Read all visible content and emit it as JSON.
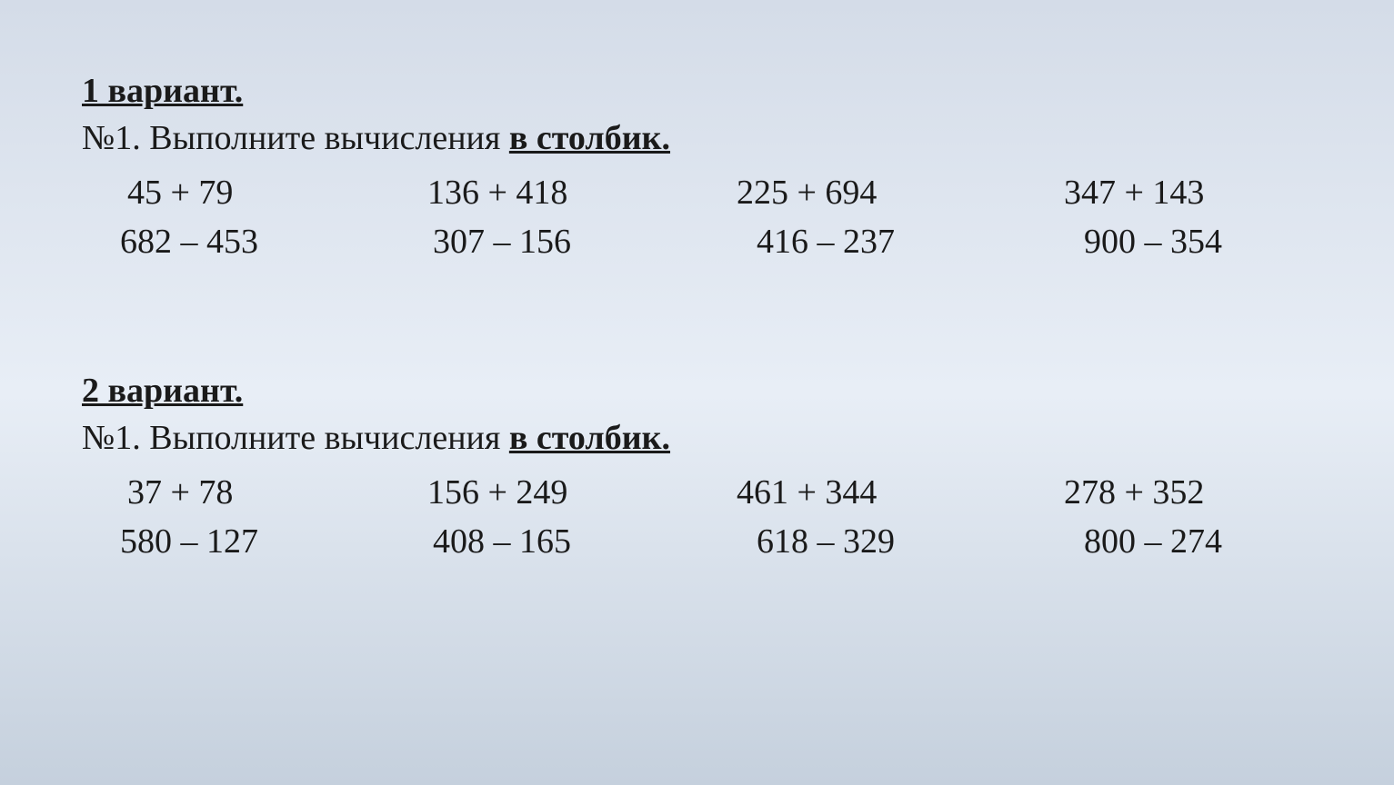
{
  "background_gradient": {
    "top": "#d4dce8",
    "middle": "#e8eef6",
    "bottom": "#c5d0dd"
  },
  "typography": {
    "font_family": "Times New Roman",
    "font_size_pt": 28,
    "text_color": "#1a1a1a"
  },
  "variant1": {
    "header": "1 вариант.",
    "task_number": "№1.",
    "task_text": "Выполните вычисления ",
    "task_emphasis": "в столбик.",
    "row1": {
      "p1": "45 + 79",
      "p2": "136 + 418",
      "p3": "225 + 694",
      "p4": "347 + 143"
    },
    "row2": {
      "p1": "682 – 453",
      "p2": "307 – 156",
      "p3": "416 – 237",
      "p4": "900 – 354"
    }
  },
  "variant2": {
    "header": "2 вариант.",
    "task_number": "№1.",
    "task_text": "Выполните вычисления ",
    "task_emphasis": "в столбик.",
    "row1": {
      "p1": "37 + 78",
      "p2": "156 + 249",
      "p3": "461 + 344",
      "p4": "278 + 352"
    },
    "row2": {
      "p1": "580 – 127",
      "p2": "408 – 165",
      "p3": "618 – 329",
      "p4": "800 – 274"
    }
  }
}
